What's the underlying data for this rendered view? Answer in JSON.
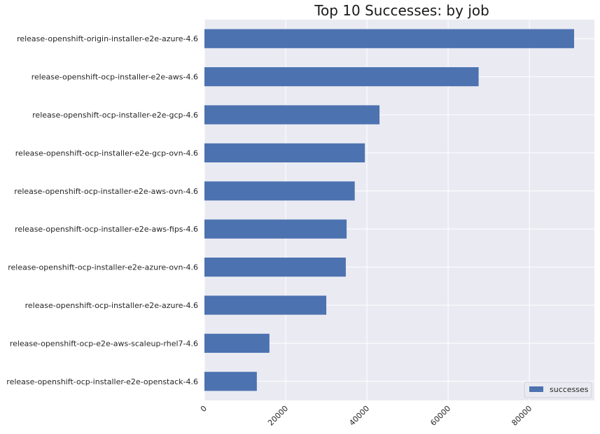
{
  "chart_data": {
    "type": "bar",
    "orientation": "horizontal",
    "title": "Top 10 Successes: by job",
    "xlabel": "",
    "ylabel": "",
    "xlim": [
      0,
      96000
    ],
    "xticks": [
      0,
      20000,
      40000,
      60000,
      80000
    ],
    "grid": true,
    "legend_position": "lower-right",
    "series": [
      {
        "name": "successes",
        "color": "#4c72b0",
        "values": [
          91000,
          67500,
          43100,
          39500,
          37000,
          35000,
          34800,
          30000,
          16000,
          12900
        ]
      }
    ],
    "categories": [
      "release-openshift-origin-installer-e2e-azure-4.6",
      "release-openshift-ocp-installer-e2e-aws-4.6",
      "release-openshift-ocp-installer-e2e-gcp-4.6",
      "release-openshift-ocp-installer-e2e-gcp-ovn-4.6",
      "release-openshift-ocp-installer-e2e-aws-ovn-4.6",
      "release-openshift-ocp-installer-e2e-aws-fips-4.6",
      "release-openshift-ocp-installer-e2e-azure-ovn-4.6",
      "release-openshift-ocp-installer-e2e-azure-4.6",
      "release-openshift-ocp-e2e-aws-scaleup-rhel7-4.6",
      "release-openshift-ocp-installer-e2e-openstack-4.6"
    ]
  },
  "colors": {
    "plot_background": "#eaeaf2",
    "grid": "#ffffff",
    "bar": "#4c72b0"
  }
}
